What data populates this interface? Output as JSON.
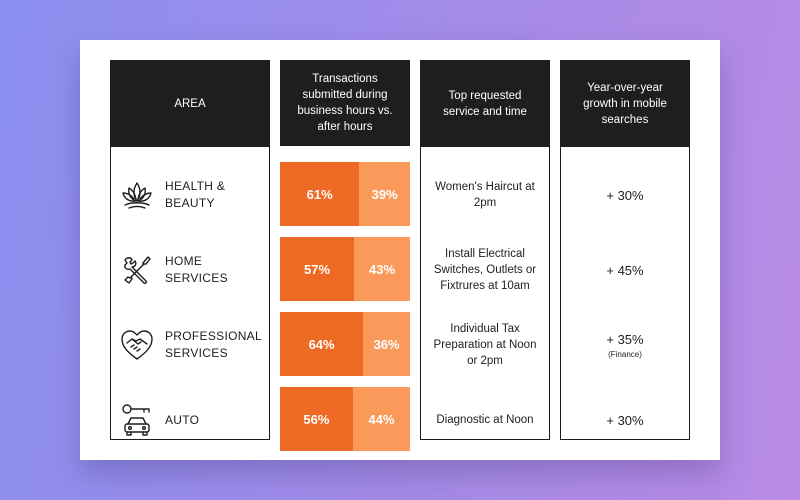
{
  "colors": {
    "header_bg": "#1e1e20",
    "business_hours": "#ee6a24",
    "after_hours": "#f99a5a"
  },
  "headers": {
    "area": "AREA",
    "transactions": "Transactions submitted during business hours vs. after hours",
    "service": "Top requested service and time",
    "growth": "Year-over-year growth in mobile searches"
  },
  "rows": [
    {
      "icon": "lotus-icon",
      "area_line1": "HEALTH &",
      "area_line2": "BEAUTY",
      "service": "Women's Haircut at 2pm",
      "growth": "+ 30%",
      "note": ""
    },
    {
      "icon": "tools-icon",
      "area_line1": "HOME",
      "area_line2": "SERVICES",
      "service": "Install Electrical Switches, Outlets or Fixtrures at 10am",
      "growth": "+ 45%",
      "note": ""
    },
    {
      "icon": "handshake-heart-icon",
      "area_line1": "PROFESSIONAL",
      "area_line2": "SERVICES",
      "service": "Individual Tax Preparation at Noon or 2pm",
      "growth": "+ 35%",
      "note": "(Finance)"
    },
    {
      "icon": "car-key-icon",
      "area_line1": "AUTO",
      "area_line2": "",
      "service": "Diagnostic at Noon",
      "growth": "+ 30%",
      "note": ""
    }
  ],
  "chart_data": {
    "type": "bar",
    "title": "Transactions submitted during business hours vs. after hours",
    "categories": [
      "HEALTH & BEAUTY",
      "HOME SERVICES",
      "PROFESSIONAL SERVICES",
      "AUTO"
    ],
    "series": [
      {
        "name": "Business hours",
        "values": [
          61,
          57,
          64,
          56
        ]
      },
      {
        "name": "After hours",
        "values": [
          39,
          43,
          36,
          44
        ]
      }
    ],
    "unit": "%",
    "stacked": true
  }
}
